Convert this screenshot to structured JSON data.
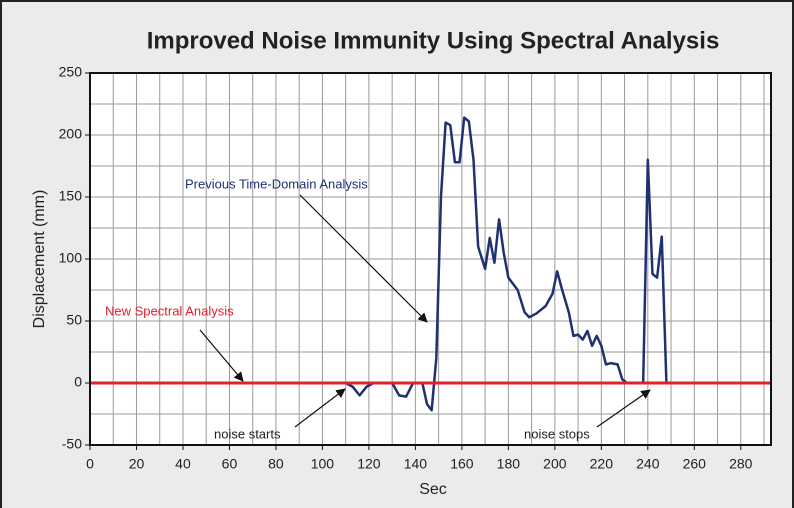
{
  "chart_data": {
    "type": "line",
    "title": "Improved Noise Immunity Using Spectral Analysis",
    "x_label": "Sec",
    "y_label": "Displacement (mm)",
    "xlim": [
      0,
      293
    ],
    "ylim": [
      -50,
      250
    ],
    "xticks": [
      0,
      20,
      40,
      60,
      80,
      100,
      120,
      140,
      160,
      180,
      200,
      220,
      240,
      260,
      280
    ],
    "yticks": [
      -50,
      0,
      50,
      100,
      150,
      200,
      250
    ],
    "minor_xticks": [
      10,
      30,
      50,
      70,
      90,
      110,
      130,
      150,
      170,
      190,
      210,
      230,
      250,
      270,
      290
    ],
    "minor_yticks": [
      -25,
      25,
      75,
      125,
      175,
      225
    ],
    "grid": true,
    "series": [
      {
        "name": "Previous Time-Domain Analysis",
        "color": "#1f3170",
        "x": [
          0,
          110,
          113,
          116,
          119,
          122,
          130,
          133,
          136,
          139,
          143,
          145,
          147,
          149,
          151,
          153,
          155,
          157,
          159,
          161,
          163,
          165,
          167,
          170,
          172,
          174,
          176,
          178,
          180,
          184,
          187,
          189,
          192,
          196,
          199,
          201,
          203,
          206,
          208,
          210,
          212,
          214,
          216,
          218,
          220,
          222,
          224,
          227,
          229,
          231,
          238,
          240,
          242,
          244,
          246,
          248
        ],
        "values": [
          0,
          0,
          -3,
          -10,
          -3,
          0,
          0,
          -10,
          -11,
          0,
          0,
          -17,
          -22,
          20,
          150,
          210,
          208,
          178,
          178,
          214,
          211,
          180,
          110,
          92,
          117,
          97,
          132,
          105,
          85,
          75,
          57,
          53,
          56,
          62,
          72,
          90,
          76,
          57,
          38,
          39,
          35,
          42,
          30,
          38,
          30,
          15,
          16,
          15,
          3,
          0,
          0,
          180,
          88,
          85,
          118,
          0
        ]
      },
      {
        "name": "New Spectral Analysis",
        "color": "#e3202a",
        "x": [
          0,
          293
        ],
        "values": [
          0,
          0
        ]
      }
    ],
    "annotations": [
      "noise starts",
      "noise stops"
    ]
  }
}
